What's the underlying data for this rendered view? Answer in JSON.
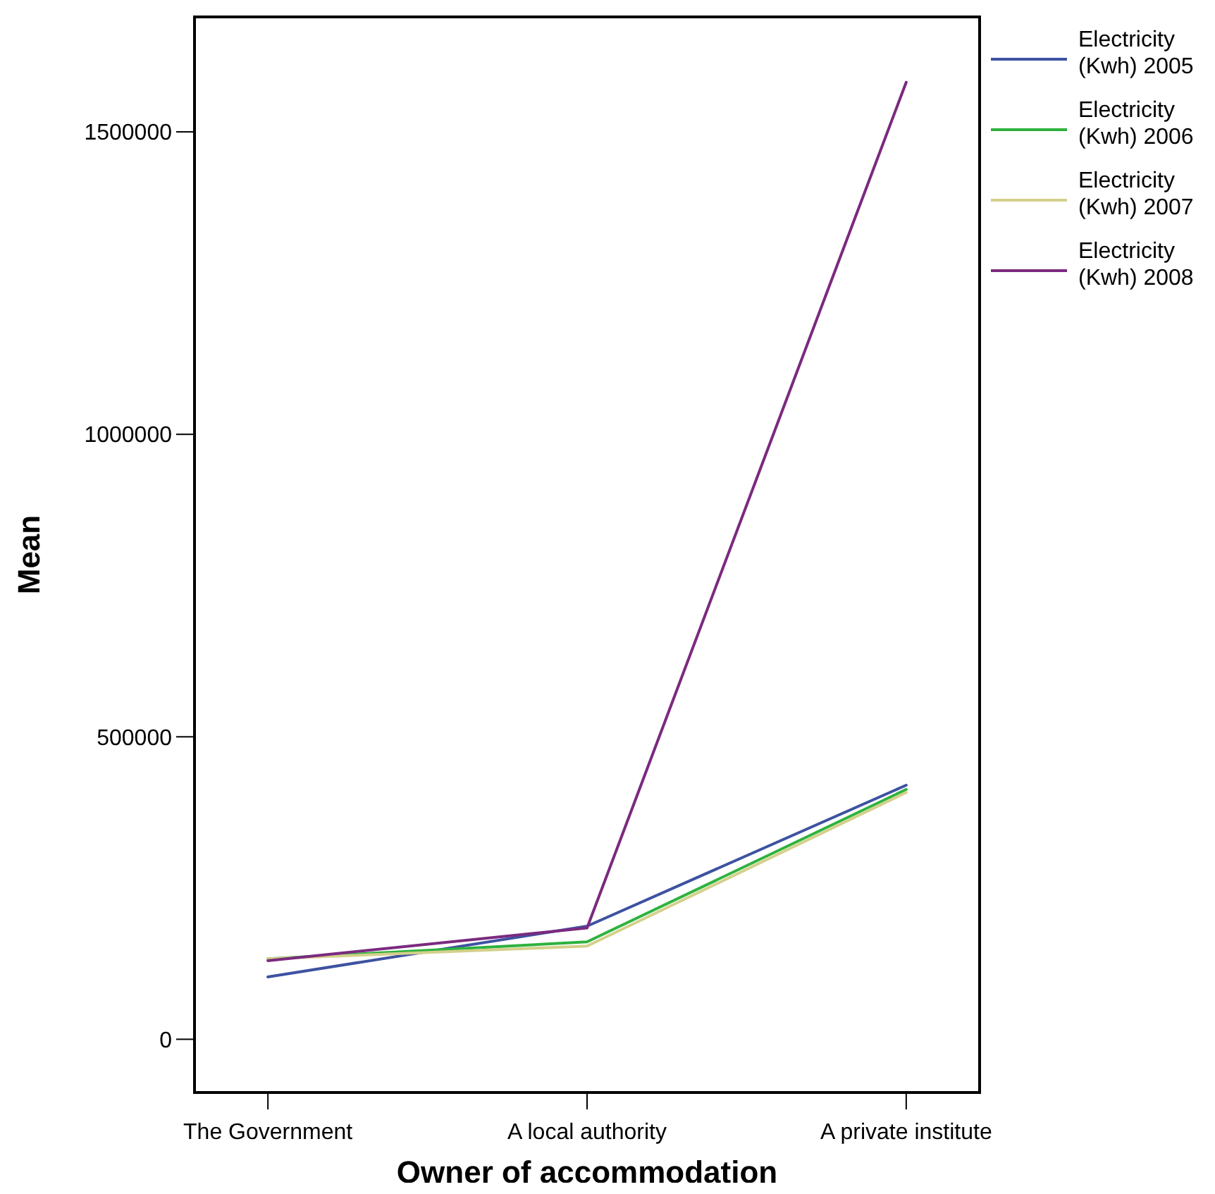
{
  "chart_data": {
    "type": "line",
    "xlabel": "Owner of accommodation",
    "ylabel": "Mean",
    "categories": [
      "The Government",
      "A local authority",
      "A private institute"
    ],
    "series": [
      {
        "name": "Electricity (Kwh) 2005",
        "color": "#3d52a1",
        "values": [
          103000,
          187000,
          420000
        ]
      },
      {
        "name": "Electricity (Kwh) 2006",
        "color": "#2eb23e",
        "values": [
          133000,
          161000,
          413000
        ]
      },
      {
        "name": "Electricity (Kwh) 2007",
        "color": "#d4d08b",
        "values": [
          133000,
          154000,
          408000
        ]
      },
      {
        "name": "Electricity (Kwh) 2008",
        "color": "#7b2a7f",
        "values": [
          130000,
          184000,
          1582000
        ]
      }
    ],
    "ylim": [
      -88000,
      1690000
    ],
    "yticks": [
      0,
      500000,
      1000000,
      1500000
    ],
    "grid": false,
    "legend": "top right",
    "marker": "none",
    "line_style": "solid"
  }
}
